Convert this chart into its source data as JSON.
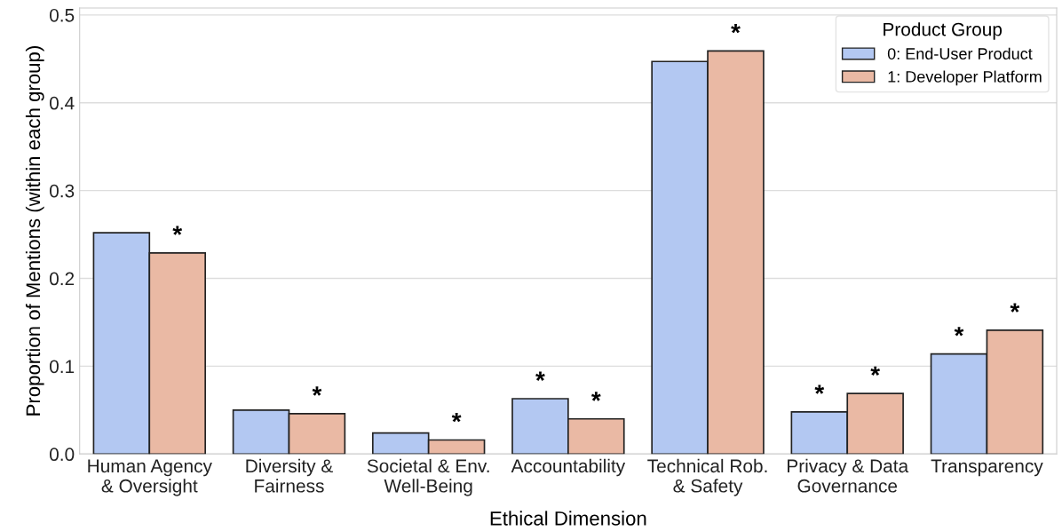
{
  "chart_data": {
    "type": "bar",
    "xlabel": "Ethical Dimension",
    "ylabel": "Proportion of Mentions (within each group)",
    "legend_title": "Product Group",
    "categories": [
      "Human Agency\n& Oversight",
      "Diversity &\nFairness",
      "Societal & Env.\nWell-Being",
      "Accountability",
      "Technical Rob.\n& Safety",
      "Privacy & Data\nGovernance",
      "Transparency"
    ],
    "series": [
      {
        "name": "0: End-User Product",
        "color": "#b3c8f2",
        "values": [
          0.252,
          0.05,
          0.024,
          0.063,
          0.447,
          0.048,
          0.114
        ],
        "value_labels": [
          null,
          null,
          null,
          "*",
          null,
          "*",
          "*"
        ]
      },
      {
        "name": "1: Developer Platform",
        "color": "#eab9a4",
        "values": [
          0.229,
          0.046,
          0.016,
          0.04,
          0.459,
          0.069,
          0.141
        ],
        "value_labels": [
          "*",
          "*",
          "*",
          "*",
          "*",
          "*",
          "*"
        ]
      }
    ],
    "ylim": [
      0,
      0.508
    ],
    "yticks": [
      {
        "value": 0,
        "label": "0.0"
      },
      0.1,
      0.2,
      0.3,
      0.4,
      0.5
    ],
    "grid": "y",
    "legend": "top right"
  }
}
